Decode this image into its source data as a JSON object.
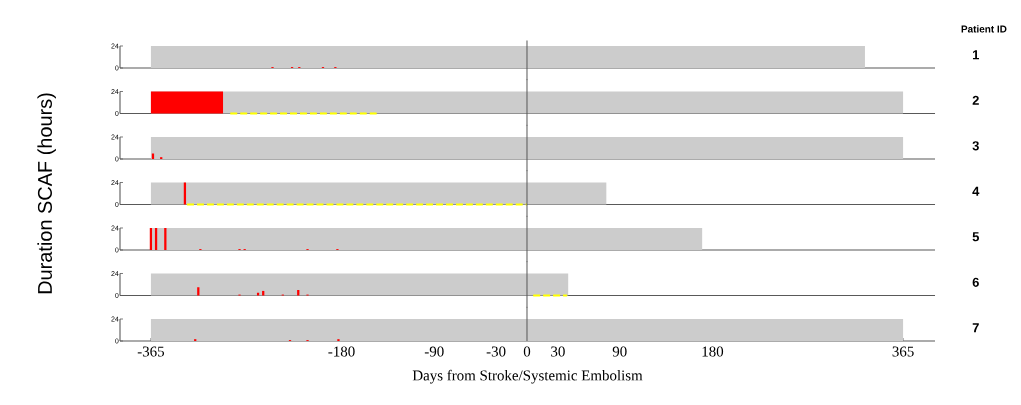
{
  "chart_data": [
    {
      "type": "bar",
      "y2label": "1",
      "annotations": [
        "Patient ID"
      ],
      "xlim": [
        -395,
        396
      ],
      "ylim": [
        0,
        24
      ],
      "yticks": [
        0,
        24
      ],
      "tick_labels": "y",
      "bands": [
        {
          "axis": "x",
          "from": -365,
          "to": 328,
          "color": "#cccccc"
        }
      ],
      "ref_lines": [
        {
          "axis": "x",
          "value": 0,
          "color": "#555555"
        }
      ],
      "series": [
        {
          "color": "#ff0000",
          "x": [
            -247,
            -228,
            -221,
            -198,
            -186
          ],
          "values": [
            1,
            1,
            1,
            1,
            1
          ]
        }
      ]
    },
    {
      "type": "bar",
      "y2label": "2",
      "xlim": [
        -395,
        396
      ],
      "ylim": [
        0,
        24
      ],
      "yticks": [
        0,
        24
      ],
      "tick_labels": "y",
      "bands": [
        {
          "axis": "x",
          "from": -365,
          "to": 365,
          "color": "#cccccc"
        }
      ],
      "ref_lines": [
        {
          "axis": "x",
          "value": 0,
          "color": "#555555"
        }
      ],
      "series": [
        {
          "type": "area",
          "color": "#ff0000",
          "x": [
            -365,
            -295
          ],
          "values": [
            24,
            24
          ]
        },
        {
          "type": "line",
          "color": "#ffff00",
          "line_style": "dashed",
          "x": [
            -288,
            -145
          ],
          "values": [
            0,
            0
          ]
        }
      ]
    },
    {
      "type": "bar",
      "y2label": "3",
      "xlim": [
        -395,
        396
      ],
      "ylim": [
        0,
        24
      ],
      "yticks": [
        0,
        24
      ],
      "tick_labels": "y",
      "bands": [
        {
          "axis": "x",
          "from": -365,
          "to": 365,
          "color": "#cccccc"
        }
      ],
      "ref_lines": [
        {
          "axis": "x",
          "value": 0,
          "color": "#555555"
        }
      ],
      "series": [
        {
          "color": "#ff0000",
          "x": [
            -363,
            -355
          ],
          "values": [
            6,
            2
          ]
        }
      ]
    },
    {
      "type": "bar",
      "y2label": "4",
      "ylabel": "Duration SCAF (hours)",
      "xlim": [
        -395,
        396
      ],
      "ylim": [
        0,
        24
      ],
      "yticks": [
        0,
        24
      ],
      "tick_labels": "y",
      "bands": [
        {
          "axis": "x",
          "from": -365,
          "to": 77,
          "color": "#cccccc"
        }
      ],
      "ref_lines": [
        {
          "axis": "x",
          "value": 0,
          "color": "#555555"
        }
      ],
      "series": [
        {
          "color": "#ff0000",
          "x": [
            -332
          ],
          "values": [
            24
          ]
        },
        {
          "type": "line",
          "color": "#ffff00",
          "line_style": "dashed",
          "x": [
            -330,
            0
          ],
          "values": [
            0,
            0
          ]
        }
      ]
    },
    {
      "type": "bar",
      "y2label": "5",
      "xlim": [
        -395,
        396
      ],
      "ylim": [
        0,
        24
      ],
      "yticks": [
        0,
        24
      ],
      "tick_labels": "y",
      "bands": [
        {
          "axis": "x",
          "from": -365,
          "to": 170,
          "color": "#cccccc"
        }
      ],
      "ref_lines": [
        {
          "axis": "x",
          "value": 0,
          "color": "#555555"
        }
      ],
      "series": [
        {
          "color": "#ff0000",
          "x": [
            -365,
            -360,
            -351,
            -317,
            -279,
            -274,
            -213,
            -184
          ],
          "values": [
            24,
            24,
            24,
            1,
            1,
            1,
            1,
            1
          ]
        }
      ]
    },
    {
      "type": "bar",
      "y2label": "6",
      "xlim": [
        -395,
        396
      ],
      "ylim": [
        0,
        24
      ],
      "yticks": [
        0,
        24
      ],
      "tick_labels": "y",
      "bands": [
        {
          "axis": "x",
          "from": -365,
          "to": 40,
          "color": "#cccccc"
        }
      ],
      "ref_lines": [
        {
          "axis": "x",
          "value": 0,
          "color": "#555555"
        }
      ],
      "series": [
        {
          "color": "#ff0000",
          "x": [
            -319,
            -279,
            -261,
            -256,
            -237,
            -222,
            -213
          ],
          "values": [
            9,
            1,
            3,
            5,
            1,
            6,
            1
          ]
        },
        {
          "type": "line",
          "color": "#ffff00",
          "line_style": "dashed",
          "x": [
            6,
            39
          ],
          "values": [
            0,
            0
          ]
        }
      ]
    },
    {
      "type": "bar",
      "y2label": "7",
      "xlabel": "Days from Stroke/Systemic Embolism",
      "xlim": [
        -395,
        396
      ],
      "ylim": [
        0,
        24
      ],
      "yticks": [
        0,
        24
      ],
      "xticks": [
        -365,
        -180,
        -90,
        -30,
        0,
        30,
        90,
        180,
        365
      ],
      "bands": [
        {
          "axis": "x",
          "from": -365,
          "to": 365,
          "color": "#cccccc"
        }
      ],
      "ref_lines": [
        {
          "axis": "x",
          "value": 0,
          "color": "#555555"
        }
      ],
      "series": [
        {
          "color": "#ff0000",
          "x": [
            -322,
            -230,
            -213,
            -183
          ],
          "values": [
            2,
            1,
            1,
            2
          ]
        }
      ]
    }
  ]
}
